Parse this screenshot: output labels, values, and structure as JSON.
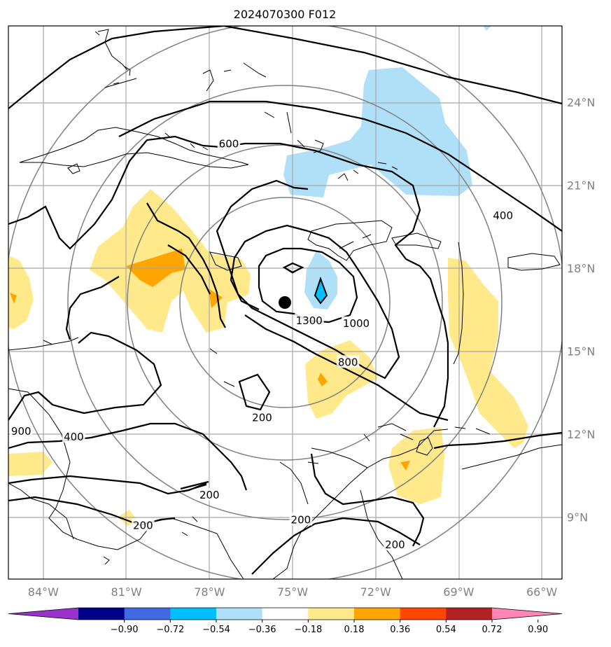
{
  "title": "2024070300 F012",
  "map": {
    "lon_ticks": [
      {
        "value": -84,
        "label": "84°W"
      },
      {
        "value": -81,
        "label": "81°W"
      },
      {
        "value": -78,
        "label": "78°W"
      },
      {
        "value": -75,
        "label": "75°W"
      },
      {
        "value": -72,
        "label": "72°W"
      },
      {
        "value": -69,
        "label": "69°W"
      },
      {
        "value": -66,
        "label": "66°W"
      }
    ],
    "lat_ticks": [
      {
        "value": 9,
        "label": "9°N"
      },
      {
        "value": 12,
        "label": "12°N"
      },
      {
        "value": 15,
        "label": "15°N"
      },
      {
        "value": 18,
        "label": "18°N"
      },
      {
        "value": 21,
        "label": "21°N"
      },
      {
        "value": 24,
        "label": "24°N"
      }
    ],
    "storm_center": {
      "lon": -75.3,
      "lat": 16.9
    },
    "contour_labels": [
      {
        "text": "600",
        "lon": -77.3,
        "lat": 22.5
      },
      {
        "text": "400",
        "lon": -67.4,
        "lat": 19.9
      },
      {
        "text": "1300",
        "lon": -74.4,
        "lat": 16.1
      },
      {
        "text": "1000",
        "lon": -72.7,
        "lat": 16.0
      },
      {
        "text": "800",
        "lon": -73.0,
        "lat": 14.6
      },
      {
        "text": "200",
        "lon": -76.1,
        "lat": 12.6
      },
      {
        "text": "400",
        "lon": -82.9,
        "lat": 11.9
      },
      {
        "text": "900",
        "lon": -84.8,
        "lat": 12.1
      },
      {
        "text": "200",
        "lon": -78.0,
        "lat": 9.8
      },
      {
        "text": "200",
        "lon": -80.4,
        "lat": 8.7
      },
      {
        "text": "200",
        "lon": -74.7,
        "lat": 8.9
      },
      {
        "text": "200",
        "lon": -71.3,
        "lat": 8.0
      }
    ]
  },
  "colorbar": {
    "colors": [
      "#9932cc",
      "#00008b",
      "#4169e1",
      "#00bfff",
      "#b0e0f8",
      "#ffffff",
      "#ffe98a",
      "#ffa500",
      "#ff4500",
      "#b22222",
      "#ff85b4"
    ],
    "labels": [
      "−0.90",
      "−0.72",
      "−0.54",
      "−0.36",
      "−0.18",
      "0.18",
      "0.36",
      "0.54",
      "0.72",
      "0.90"
    ]
  }
}
